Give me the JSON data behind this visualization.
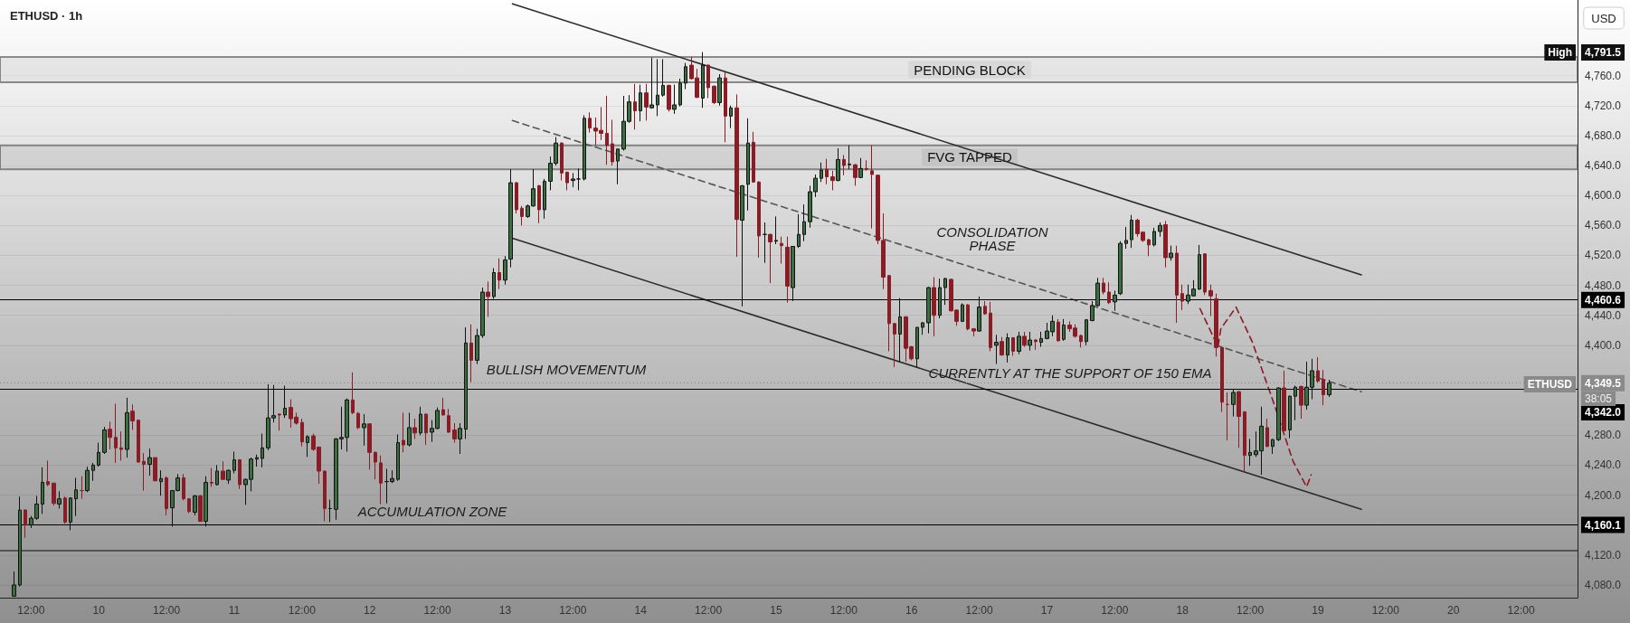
{
  "chart_data": {
    "type": "candlestick",
    "title": "ETHUSD · 1h",
    "ylabel": "USD",
    "x": [
      "--08-09T09:00",
      "--08-09T10:00",
      "--08-09T11:00",
      "--08-09T12:00",
      "--08-09T13:00",
      "--08-09T14:00",
      "--08-09T15:00",
      "--08-09T16:00",
      "--08-09T17:00",
      "--08-09T18:00",
      "--08-09T19:00",
      "--08-09T20:00",
      "--08-09T21:00",
      "--08-09T22:00",
      "--08-09T23:00",
      "--08-10T00:00",
      "--08-10T01:00",
      "--08-10T02:00",
      "--08-10T03:00",
      "--08-10T04:00",
      "--08-10T05:00",
      "--08-10T06:00",
      "--08-10T07:00",
      "--08-10T08:00",
      "--08-10T09:00",
      "--08-10T10:00",
      "--08-10T11:00",
      "--08-10T12:00",
      "--08-10T13:00",
      "--08-10T14:00",
      "--08-10T15:00",
      "--08-10T16:00",
      "--08-10T17:00",
      "--08-10T18:00",
      "--08-10T19:00",
      "--08-10T20:00",
      "--08-10T21:00",
      "--08-10T22:00",
      "--08-10T23:00",
      "--08-11T00:00",
      "--08-11T01:00",
      "--08-11T02:00",
      "--08-11T03:00",
      "--08-11T04:00",
      "--08-11T05:00",
      "--08-11T06:00",
      "--08-11T07:00",
      "--08-11T08:00",
      "--08-11T09:00",
      "--08-11T10:00",
      "--08-11T11:00",
      "--08-11T12:00",
      "--08-11T13:00",
      "--08-11T14:00",
      "--08-11T15:00",
      "--08-11T16:00",
      "--08-11T17:00",
      "--08-11T18:00",
      "--08-11T19:00",
      "--08-11T20:00",
      "--08-11T21:00",
      "--08-11T22:00",
      "--08-11T23:00",
      "--08-12T00:00",
      "--08-12T01:00",
      "--08-12T02:00",
      "--08-12T03:00",
      "--08-12T04:00",
      "--08-12T05:00",
      "--08-12T06:00",
      "--08-12T07:00",
      "--08-12T08:00",
      "--08-12T09:00",
      "--08-12T10:00",
      "--08-12T11:00",
      "--08-12T12:00",
      "--08-12T13:00",
      "--08-12T14:00",
      "--08-12T15:00",
      "--08-12T16:00",
      "--08-12T17:00",
      "--08-12T18:00",
      "--08-12T19:00",
      "--08-12T20:00",
      "--08-12T21:00",
      "--08-12T22:00",
      "--08-12T23:00",
      "--08-13T00:00",
      "--08-13T01:00",
      "--08-13T02:00",
      "--08-13T03:00",
      "--08-13T04:00",
      "--08-13T05:00",
      "--08-13T06:00",
      "--08-13T07:00",
      "--08-13T08:00",
      "--08-13T09:00",
      "--08-13T10:00",
      "--08-13T11:00",
      "--08-13T12:00",
      "--08-13T13:00",
      "--08-13T14:00",
      "--08-13T15:00",
      "--08-13T16:00",
      "--08-13T17:00",
      "--08-13T18:00",
      "--08-13T19:00",
      "--08-13T20:00",
      "--08-13T21:00",
      "--08-13T22:00",
      "--08-13T23:00",
      "--08-14T00:00",
      "--08-14T01:00",
      "--08-14T02:00",
      "--08-14T03:00",
      "--08-14T04:00",
      "--08-14T05:00",
      "--08-14T06:00",
      "--08-14T07:00",
      "--08-14T08:00",
      "--08-14T09:00",
      "--08-14T10:00",
      "--08-14T11:00",
      "--08-14T12:00",
      "--08-14T13:00",
      "--08-14T14:00",
      "--08-14T15:00",
      "--08-14T16:00",
      "--08-14T17:00",
      "--08-14T18:00",
      "--08-14T19:00",
      "--08-14T20:00",
      "--08-14T21:00",
      "--08-14T22:00",
      "--08-14T23:00",
      "--08-15T00:00",
      "--08-15T01:00",
      "--08-15T02:00",
      "--08-15T03:00",
      "--08-15T04:00",
      "--08-15T05:00",
      "--08-15T06:00",
      "--08-15T07:00",
      "--08-15T08:00",
      "--08-15T09:00",
      "--08-15T10:00",
      "--08-15T11:00",
      "--08-15T12:00",
      "--08-15T13:00",
      "--08-15T14:00",
      "--08-15T15:00",
      "--08-15T16:00",
      "--08-15T17:00",
      "--08-15T18:00",
      "--08-15T19:00",
      "--08-15T20:00",
      "--08-15T21:00",
      "--08-15T22:00",
      "--08-15T23:00",
      "--08-16T00:00",
      "--08-16T01:00",
      "--08-16T02:00",
      "--08-16T03:00",
      "--08-16T04:00",
      "--08-16T05:00",
      "--08-16T06:00",
      "--08-16T07:00",
      "--08-16T08:00",
      "--08-16T09:00",
      "--08-16T10:00",
      "--08-16T11:00",
      "--08-16T12:00",
      "--08-16T13:00",
      "--08-16T14:00",
      "--08-16T15:00",
      "--08-16T16:00",
      "--08-16T17:00",
      "--08-16T18:00",
      "--08-16T19:00",
      "--08-16T20:00",
      "--08-16T21:00",
      "--08-16T22:00",
      "--08-16T23:00",
      "--08-17T00:00",
      "--08-17T01:00",
      "--08-17T02:00",
      "--08-17T03:00",
      "--08-17T04:00",
      "--08-17T05:00",
      "--08-17T06:00",
      "--08-17T07:00",
      "--08-17T08:00",
      "--08-17T09:00",
      "--08-17T10:00",
      "--08-17T11:00",
      "--08-17T12:00",
      "--08-17T13:00",
      "--08-17T14:00",
      "--08-17T15:00",
      "--08-17T16:00",
      "--08-17T17:00",
      "--08-17T18:00",
      "--08-17T19:00",
      "--08-17T20:00",
      "--08-17T21:00",
      "--08-17T22:00",
      "--08-17T23:00",
      "--08-18T00:00",
      "--08-18T01:00",
      "--08-18T02:00",
      "--08-18T03:00",
      "--08-18T04:00",
      "--08-18T05:00",
      "--08-18T06:00",
      "--08-18T07:00",
      "--08-18T08:00",
      "--08-18T09:00",
      "--08-18T10:00",
      "--08-18T11:00",
      "--08-18T12:00",
      "--08-18T13:00",
      "--08-18T14:00",
      "--08-18T15:00",
      "--08-18T16:00",
      "--08-18T17:00",
      "--08-18T18:00",
      "--08-18T19:00",
      "--08-18T20:00",
      "--08-18T21:00",
      "--08-18T22:00",
      "--08-18T23:00",
      "--08-19T00:00",
      "--08-19T01:00",
      "--08-19T02:00"
    ],
    "ohlc": [
      [
        4065,
        4098,
        4064,
        4080
      ],
      [
        4080,
        4198,
        4078,
        4180
      ],
      [
        4180,
        4181,
        4143,
        4160
      ],
      [
        4160,
        4172,
        4156,
        4169
      ],
      [
        4169,
        4199,
        4167,
        4188
      ],
      [
        4188,
        4237,
        4175,
        4217
      ],
      [
        4218,
        4246,
        4212,
        4214
      ],
      [
        4216,
        4216,
        4186,
        4189
      ],
      [
        4188,
        4205,
        4182,
        4195
      ],
      [
        4196,
        4198,
        4162,
        4164
      ],
      [
        4164,
        4197,
        4153,
        4196
      ],
      [
        4195,
        4223,
        4172,
        4207
      ],
      [
        4206,
        4225,
        4195,
        4206
      ],
      [
        4206,
        4238,
        4204,
        4233
      ],
      [
        4233,
        4243,
        4219,
        4240
      ],
      [
        4240,
        4270,
        4238,
        4257
      ],
      [
        4257,
        4291,
        4255,
        4287
      ],
      [
        4288,
        4298,
        4261,
        4277
      ],
      [
        4277,
        4322,
        4243,
        4263
      ],
      [
        4263,
        4285,
        4246,
        4261
      ],
      [
        4261,
        4330,
        4250,
        4310
      ],
      [
        4312,
        4321,
        4287,
        4299
      ],
      [
        4300,
        4300,
        4244,
        4244
      ],
      [
        4245,
        4256,
        4206,
        4241
      ],
      [
        4241,
        4262,
        4226,
        4250
      ],
      [
        4250,
        4250,
        4219,
        4219
      ],
      [
        4218,
        4233,
        4199,
        4222
      ],
      [
        4223,
        4225,
        4173,
        4182
      ],
      [
        4183,
        4206,
        4158,
        4206
      ],
      [
        4206,
        4228,
        4205,
        4223
      ],
      [
        4223,
        4228,
        4193,
        4195
      ],
      [
        4195,
        4196,
        4176,
        4178
      ],
      [
        4177,
        4200,
        4173,
        4199
      ],
      [
        4199,
        4200,
        4165,
        4165
      ],
      [
        4165,
        4225,
        4158,
        4217
      ],
      [
        4217,
        4236,
        4211,
        4216
      ],
      [
        4214,
        4240,
        4213,
        4232
      ],
      [
        4232,
        4245,
        4220,
        4221
      ],
      [
        4220,
        4234,
        4215,
        4233
      ],
      [
        4233,
        4258,
        4229,
        4247
      ],
      [
        4247,
        4248,
        4208,
        4214
      ],
      [
        4214,
        4222,
        4187,
        4221
      ],
      [
        4221,
        4250,
        4205,
        4248
      ],
      [
        4248,
        4254,
        4238,
        4250
      ],
      [
        4249,
        4282,
        4237,
        4263
      ],
      [
        4263,
        4348,
        4260,
        4303
      ],
      [
        4303,
        4347,
        4297,
        4306
      ],
      [
        4308,
        4309,
        4286,
        4307
      ],
      [
        4307,
        4346,
        4303,
        4316
      ],
      [
        4317,
        4328,
        4290,
        4302
      ],
      [
        4304,
        4310,
        4294,
        4296
      ],
      [
        4297,
        4302,
        4265,
        4271
      ],
      [
        4270,
        4280,
        4251,
        4278
      ],
      [
        4279,
        4282,
        4259,
        4261
      ],
      [
        4264,
        4265,
        4215,
        4232
      ],
      [
        4232,
        4233,
        4165,
        4182
      ],
      [
        4182,
        4194,
        4164,
        4182
      ],
      [
        4181,
        4276,
        4167,
        4275
      ],
      [
        4275,
        4318,
        4261,
        4277
      ],
      [
        4277,
        4329,
        4258,
        4327
      ],
      [
        4327,
        4364,
        4308,
        4310
      ],
      [
        4309,
        4311,
        4288,
        4290
      ],
      [
        4290,
        4308,
        4266,
        4295
      ],
      [
        4295,
        4296,
        4234,
        4257
      ],
      [
        4257,
        4258,
        4221,
        4244
      ],
      [
        4243,
        4253,
        4188,
        4216
      ],
      [
        4218,
        4235,
        4189,
        4218
      ],
      [
        4218,
        4233,
        4216,
        4222
      ],
      [
        4221,
        4281,
        4219,
        4270
      ],
      [
        4273,
        4310,
        4257,
        4267
      ],
      [
        4267,
        4310,
        4265,
        4290
      ],
      [
        4290,
        4302,
        4275,
        4283
      ],
      [
        4283,
        4318,
        4280,
        4308
      ],
      [
        4308,
        4309,
        4267,
        4283
      ],
      [
        4284,
        4300,
        4271,
        4289
      ],
      [
        4289,
        4317,
        4288,
        4313
      ],
      [
        4314,
        4330,
        4306,
        4307
      ],
      [
        4306,
        4315,
        4283,
        4284
      ],
      [
        4287,
        4296,
        4270,
        4275
      ],
      [
        4275,
        4296,
        4255,
        4289
      ],
      [
        4288,
        4424,
        4275,
        4403
      ],
      [
        4403,
        4428,
        4351,
        4380
      ],
      [
        4380,
        4422,
        4375,
        4413
      ],
      [
        4413,
        4477,
        4410,
        4471
      ],
      [
        4471,
        4485,
        4438,
        4465
      ],
      [
        4465,
        4503,
        4462,
        4497
      ],
      [
        4497,
        4516,
        4475,
        4487
      ],
      [
        4487,
        4519,
        4481,
        4514
      ],
      [
        4515,
        4635,
        4504,
        4617
      ],
      [
        4617,
        4618,
        4576,
        4581
      ],
      [
        4583,
        4586,
        4560,
        4572
      ],
      [
        4572,
        4588,
        4570,
        4586
      ],
      [
        4586,
        4635,
        4585,
        4609
      ],
      [
        4613,
        4614,
        4563,
        4581
      ],
      [
        4581,
        4622,
        4569,
        4619
      ],
      [
        4619,
        4652,
        4607,
        4643
      ],
      [
        4643,
        4678,
        4640,
        4670
      ],
      [
        4670,
        4671,
        4620,
        4630
      ],
      [
        4631,
        4632,
        4607,
        4617
      ],
      [
        4620,
        4630,
        4611,
        4622
      ],
      [
        4622,
        4636,
        4607,
        4622
      ],
      [
        4622,
        4707,
        4620,
        4703
      ],
      [
        4703,
        4711,
        4684,
        4690
      ],
      [
        4690,
        4704,
        4667,
        4686
      ],
      [
        4687,
        4718,
        4674,
        4683
      ],
      [
        4683,
        4733,
        4641,
        4667
      ],
      [
        4669,
        4701,
        4640,
        4645
      ],
      [
        4646,
        4662,
        4615,
        4662
      ],
      [
        4662,
        4733,
        4660,
        4699
      ],
      [
        4699,
        4734,
        4697,
        4725
      ],
      [
        4725,
        4749,
        4688,
        4713
      ],
      [
        4713,
        4748,
        4699,
        4737
      ],
      [
        4737,
        4749,
        4700,
        4718
      ],
      [
        4717,
        4784,
        4716,
        4721
      ],
      [
        4721,
        4782,
        4706,
        4734
      ],
      [
        4734,
        4782,
        4732,
        4747
      ],
      [
        4747,
        4748,
        4712,
        4715
      ],
      [
        4715,
        4748,
        4709,
        4721
      ],
      [
        4721,
        4756,
        4719,
        4750
      ],
      [
        4750,
        4777,
        4742,
        4772
      ],
      [
        4774,
        4785,
        4755,
        4756
      ],
      [
        4757,
        4769,
        4730,
        4731
      ],
      [
        4730,
        4791.5,
        4717,
        4774
      ],
      [
        4774,
        4775,
        4730,
        4744
      ],
      [
        4746,
        4747,
        4722,
        4724
      ],
      [
        4724,
        4762,
        4720,
        4757
      ],
      [
        4757,
        4765,
        4671,
        4706
      ],
      [
        4706,
        4720,
        4690,
        4717
      ],
      [
        4717,
        4735,
        4518,
        4568
      ],
      [
        4567,
        4614,
        4452,
        4613
      ],
      [
        4615,
        4703,
        4580,
        4670
      ],
      [
        4671,
        4685,
        4617,
        4618
      ],
      [
        4618,
        4619,
        4517,
        4546
      ],
      [
        4548,
        4564,
        4510,
        4548
      ],
      [
        4548,
        4549,
        4483,
        4538
      ],
      [
        4539,
        4572,
        4535,
        4540
      ],
      [
        4536,
        4545,
        4509,
        4533
      ],
      [
        4531,
        4545,
        4457,
        4479
      ],
      [
        4477,
        4532,
        4459,
        4532
      ],
      [
        4532,
        4575,
        4530,
        4548
      ],
      [
        4548,
        4588,
        4539,
        4565
      ],
      [
        4565,
        4613,
        4557,
        4605
      ],
      [
        4605,
        4628,
        4598,
        4623
      ],
      [
        4623,
        4644,
        4618,
        4634
      ],
      [
        4635,
        4649,
        4615,
        4625
      ],
      [
        4625,
        4633,
        4607,
        4620
      ],
      [
        4620,
        4663,
        4619,
        4648
      ],
      [
        4648,
        4654,
        4627,
        4640
      ],
      [
        4641,
        4667,
        4635,
        4642
      ],
      [
        4641,
        4642,
        4613,
        4624
      ],
      [
        4624,
        4650,
        4623,
        4636
      ],
      [
        4636,
        4647,
        4633,
        4635
      ],
      [
        4633,
        4667,
        4556,
        4628
      ],
      [
        4627,
        4628,
        4535,
        4540
      ],
      [
        4540,
        4576,
        4475,
        4491
      ],
      [
        4493,
        4494,
        4392,
        4429
      ],
      [
        4429,
        4430,
        4371,
        4415
      ],
      [
        4415,
        4463,
        4378,
        4438
      ],
      [
        4438,
        4439,
        4378,
        4396
      ],
      [
        4398,
        4399,
        4380,
        4382
      ],
      [
        4382,
        4424,
        4371,
        4424
      ],
      [
        4424,
        4431,
        4414,
        4430
      ],
      [
        4430,
        4478,
        4416,
        4477
      ],
      [
        4477,
        4491,
        4412,
        4440
      ],
      [
        4440,
        4489,
        4436,
        4477
      ],
      [
        4477,
        4490,
        4454,
        4489
      ],
      [
        4488,
        4489,
        4445,
        4446
      ],
      [
        4447,
        4448,
        4426,
        4432
      ],
      [
        4432,
        4456,
        4431,
        4454
      ],
      [
        4454,
        4455,
        4420,
        4422
      ],
      [
        4422,
        4423,
        4412,
        4419
      ],
      [
        4419,
        4465,
        4418,
        4451
      ],
      [
        4452,
        4459,
        4441,
        4442
      ],
      [
        4443,
        4458,
        4392,
        4397
      ],
      [
        4400,
        4414,
        4375,
        4404
      ],
      [
        4405,
        4411,
        4386,
        4387
      ],
      [
        4387,
        4416,
        4377,
        4410
      ],
      [
        4410,
        4411,
        4386,
        4392
      ],
      [
        4392,
        4418,
        4388,
        4412
      ],
      [
        4412,
        4418,
        4398,
        4400
      ],
      [
        4400,
        4418,
        4393,
        4407
      ],
      [
        4407,
        4408,
        4394,
        4405
      ],
      [
        4404,
        4418,
        4398,
        4409
      ],
      [
        4409,
        4430,
        4408,
        4419
      ],
      [
        4418,
        4440,
        4412,
        4432
      ],
      [
        4431,
        4435,
        4405,
        4406
      ],
      [
        4408,
        4435,
        4406,
        4427
      ],
      [
        4427,
        4432,
        4418,
        4422
      ],
      [
        4423,
        4428,
        4410,
        4412
      ],
      [
        4413,
        4414,
        4397,
        4405
      ],
      [
        4405,
        4435,
        4400,
        4434
      ],
      [
        4433,
        4459,
        4432,
        4453
      ],
      [
        4453,
        4490,
        4452,
        4483
      ],
      [
        4483,
        4490,
        4468,
        4471
      ],
      [
        4471,
        4484,
        4455,
        4457
      ],
      [
        4458,
        4473,
        4446,
        4467
      ],
      [
        4469,
        4539,
        4467,
        4536
      ],
      [
        4536,
        4558,
        4529,
        4540
      ],
      [
        4541,
        4574,
        4530,
        4567
      ],
      [
        4567,
        4569,
        4545,
        4549
      ],
      [
        4551,
        4552,
        4538,
        4540
      ],
      [
        4541,
        4542,
        4519,
        4534
      ],
      [
        4534,
        4557,
        4532,
        4552
      ],
      [
        4552,
        4564,
        4545,
        4560
      ],
      [
        4561,
        4566,
        4504,
        4517
      ],
      [
        4517,
        4533,
        4513,
        4523
      ],
      [
        4523,
        4533,
        4430,
        4467
      ],
      [
        4469,
        4481,
        4447,
        4459
      ],
      [
        4459,
        4481,
        4455,
        4467
      ],
      [
        4466,
        4487,
        4465,
        4475
      ],
      [
        4475,
        4534,
        4474,
        4521
      ],
      [
        4522,
        4523,
        4467,
        4471
      ],
      [
        4473,
        4481,
        4439,
        4466
      ],
      [
        4462,
        4469,
        4385,
        4397
      ],
      [
        4397,
        4398,
        4311,
        4324
      ],
      [
        4321,
        4337,
        4273,
        4321
      ],
      [
        4321,
        4342,
        4305,
        4337
      ],
      [
        4338,
        4339,
        4263,
        4305
      ],
      [
        4311,
        4312,
        4231,
        4253
      ],
      [
        4253,
        4275,
        4239,
        4257
      ],
      [
        4254,
        4285,
        4251,
        4259
      ],
      [
        4259,
        4318,
        4227,
        4292
      ],
      [
        4290,
        4302,
        4264,
        4265
      ],
      [
        4265,
        4275,
        4255,
        4274
      ],
      [
        4274,
        4344,
        4272,
        4343
      ],
      [
        4343,
        4366,
        4285,
        4286
      ],
      [
        4287,
        4333,
        4276,
        4332
      ],
      [
        4332,
        4346,
        4300,
        4344
      ],
      [
        4345,
        4346,
        4302,
        4320
      ],
      [
        4320,
        4378,
        4314,
        4344
      ],
      [
        4344,
        4382,
        4328,
        4366
      ],
      [
        4366,
        4384,
        4350,
        4352
      ],
      [
        4354,
        4367,
        4320,
        4334
      ],
      [
        4334,
        4354,
        4331,
        4349.5
      ]
    ],
    "series": [
      {
        "type": "line",
        "color": "#2b2b2b",
        "x": [
          "--08-13T01:18",
          "--08-19T07:42"
        ],
        "values": [
          4856,
          4494
        ],
        "line_style": "solid"
      },
      {
        "type": "line",
        "color": "#2b2b2b",
        "x": [
          "--08-13T01:18",
          "--08-19T07:42"
        ],
        "values": [
          4543,
          4181
        ],
        "line_style": "solid"
      },
      {
        "type": "line",
        "color": "#555555",
        "x": [
          "--08-13T01:18",
          "--08-19T07:42"
        ],
        "values": [
          4700,
          4338
        ],
        "line_style": "dashed"
      },
      {
        "type": "line",
        "color": "#8b1a24",
        "x": [
          "--08-18T03:06",
          "--08-18T06:18",
          "--08-18T06:48",
          "--08-18T09:30",
          "--08-18T12:24",
          "--08-18T16:24",
          "--08-18T19:36",
          "--08-18T22:00",
          "--08-18T22:48"
        ],
        "values": [
          4449,
          4398,
          4422,
          4451,
          4404,
          4318,
          4245,
          4211,
          4227
        ],
        "line_style": "dashed"
      }
    ],
    "xlim": [
      "--08-09T06:30",
      "--08-20T22:00"
    ],
    "xticks": [
      {
        "value": "--08-09T12:00",
        "label": "12:00"
      },
      {
        "value": "--08-10T00:00",
        "label": "10"
      },
      {
        "value": "--08-10T12:00",
        "label": "12:00"
      },
      {
        "value": "--08-11T00:00",
        "label": "11"
      },
      {
        "value": "--08-11T12:00",
        "label": "12:00"
      },
      {
        "value": "--08-12T00:00",
        "label": "12"
      },
      {
        "value": "--08-12T12:00",
        "label": "12:00"
      },
      {
        "value": "--08-13T00:00",
        "label": "13"
      },
      {
        "value": "--08-13T12:00",
        "label": "12:00"
      },
      {
        "value": "--08-14T00:00",
        "label": "14"
      },
      {
        "value": "--08-14T12:00",
        "label": "12:00"
      },
      {
        "value": "--08-15T00:00",
        "label": "15"
      },
      {
        "value": "--08-15T12:00",
        "label": "12:00"
      },
      {
        "value": "--08-16T00:00",
        "label": "16"
      },
      {
        "value": "--08-16T12:00",
        "label": "12:00"
      },
      {
        "value": "--08-17T00:00",
        "label": "17"
      },
      {
        "value": "--08-17T12:00",
        "label": "12:00"
      },
      {
        "value": "--08-18T00:00",
        "label": "18"
      },
      {
        "value": "--08-18T12:00",
        "label": "12:00"
      },
      {
        "value": "--08-19T00:00",
        "label": "19"
      },
      {
        "value": "--08-19T12:00",
        "label": "12:00"
      },
      {
        "value": "--08-20T00:00",
        "label": "20"
      },
      {
        "value": "--08-20T12:00",
        "label": "12:00"
      }
    ],
    "ylim": [
      4063,
      4861
    ],
    "yticks": [
      {
        "value": 4080,
        "label": "4,080.0"
      },
      {
        "value": 4120,
        "label": "4,120.0"
      },
      {
        "value": 4200,
        "label": "4,200.0"
      },
      {
        "value": 4240,
        "label": "4,240.0"
      },
      {
        "value": 4280,
        "label": "4,280.0"
      },
      {
        "value": 4400,
        "label": "4,400.0"
      },
      {
        "value": 4440,
        "label": "4,440.0"
      },
      {
        "value": 4480,
        "label": "4,480.0"
      },
      {
        "value": 4520,
        "label": "4,520.0"
      },
      {
        "value": 4560,
        "label": "4,560.0"
      },
      {
        "value": 4600,
        "label": "4,600.0"
      },
      {
        "value": 4640,
        "label": "4,640.0"
      },
      {
        "value": 4680,
        "label": "4,680.0"
      },
      {
        "value": 4720,
        "label": "4,720.0"
      },
      {
        "value": 4760,
        "label": "4,760.0"
      }
    ],
    "grid": "y",
    "ref_lines": [
      {
        "axis": "y",
        "value": 4460.6,
        "label": "4,460.6",
        "color": "#000000"
      },
      {
        "axis": "y",
        "value": 4342.0,
        "label": "4,342.0",
        "color": "#000000"
      },
      {
        "axis": "y",
        "value": 4160.1,
        "label": "4,160.1",
        "color": "#000000"
      },
      {
        "axis": "y",
        "value": 4126,
        "label": null,
        "color": "#555555"
      },
      {
        "axis": "y",
        "value": 4349.5,
        "label": "4,349.5",
        "color": "#8a8a8a",
        "line_style": "dotted"
      }
    ],
    "bands": [
      {
        "axis": "y",
        "from": 4751,
        "to": 4785,
        "label": "PENDING BLOCK",
        "color": "#d8d8d8"
      },
      {
        "axis": "y",
        "from": 4635,
        "to": 4667,
        "label": "FVG TAPPED",
        "color": "#c4c4c4"
      }
    ],
    "annotations": [
      "BULLISH MOVEMENTUM",
      "ACCUMULATION ZONE",
      "CONSOLIDATION\nPHASE",
      "CURRENTLY AT THE SUPPORT OF 150 EMA",
      "High",
      "4,791.5",
      "ETHUSD",
      "38:05"
    ]
  }
}
